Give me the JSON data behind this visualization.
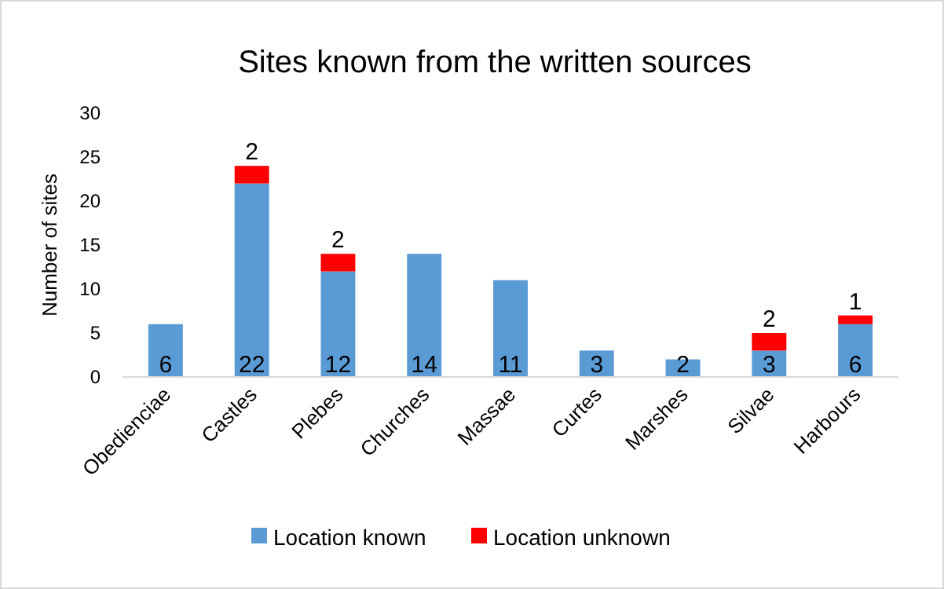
{
  "chart_data": {
    "type": "bar",
    "title": "Sites known from the written sources",
    "ylabel": "Number of sites",
    "categories": [
      "Obedienciae",
      "Castles",
      "Plebes",
      "Churches",
      "Massae",
      "Curtes",
      "Marshes",
      "Silvae",
      "Harbours"
    ],
    "series": [
      {
        "name": "Location known",
        "color": "#5b9bd5",
        "values": [
          6,
          22,
          12,
          14,
          11,
          3,
          2,
          3,
          6
        ]
      },
      {
        "name": "Location unknown",
        "color": "#ff0000",
        "values": [
          null,
          2,
          2,
          null,
          null,
          null,
          null,
          2,
          1
        ]
      }
    ],
    "stacked": true,
    "ylim": [
      0,
      30
    ],
    "yticks": [
      0,
      5,
      10,
      15,
      20,
      25,
      30
    ],
    "data_labels": true,
    "legend": "bottom",
    "grid": false
  }
}
